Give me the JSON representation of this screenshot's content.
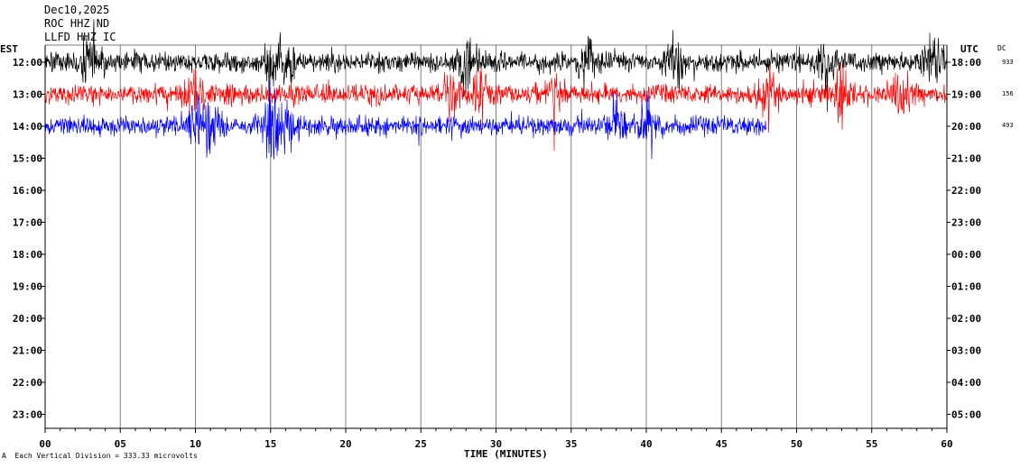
{
  "header": {
    "date": "Dec10,2025",
    "station": "ROC HHZ ND",
    "network": "LLFD HHZ IC"
  },
  "footer": {
    "scale_note": "Each Vertical Division = 333.33 microvolts",
    "corner_mark": "A"
  },
  "dc": {
    "label": "DC",
    "values": [
      "933",
      "156",
      "493"
    ]
  },
  "colors": {
    "trace_1": "#000000",
    "trace_2": "#ff0000",
    "trace_3": "#0000ff",
    "grid": "#808080"
  },
  "chart_data": {
    "type": "line",
    "title": "",
    "xlabel": "TIME (MINUTES)",
    "ylabel_left": "EST",
    "ylabel_right": "UTC",
    "xlim": [
      0,
      60
    ],
    "x_ticks": [
      "00",
      "05",
      "10",
      "15",
      "20",
      "25",
      "30",
      "35",
      "40",
      "45",
      "50",
      "55",
      "60"
    ],
    "y_ticks_left": [
      "12:00",
      "13:00",
      "14:00",
      "15:00",
      "16:00",
      "17:00",
      "18:00",
      "19:00",
      "20:00",
      "21:00",
      "22:00",
      "23:00"
    ],
    "y_ticks_right": [
      "18:00",
      "19:00",
      "20:00",
      "21:00",
      "22:00",
      "23:00",
      "00:00",
      "01:00",
      "02:00",
      "03:00",
      "04:00",
      "05:00"
    ],
    "grid": "vertical",
    "series": [
      {
        "row_est": "12:00",
        "color": "#000000",
        "end_minute": 60,
        "peak_minutes": [
          3,
          15,
          16,
          28,
          36,
          42,
          52,
          59
        ]
      },
      {
        "row_est": "13:00",
        "color": "#ff0000",
        "end_minute": 60,
        "peak_minutes": [
          10,
          27,
          29,
          34,
          48,
          53,
          57
        ]
      },
      {
        "row_est": "14:00",
        "color": "#0000ff",
        "end_minute": 48,
        "peak_minutes": [
          10,
          11,
          15,
          16,
          38,
          40
        ]
      }
    ]
  }
}
